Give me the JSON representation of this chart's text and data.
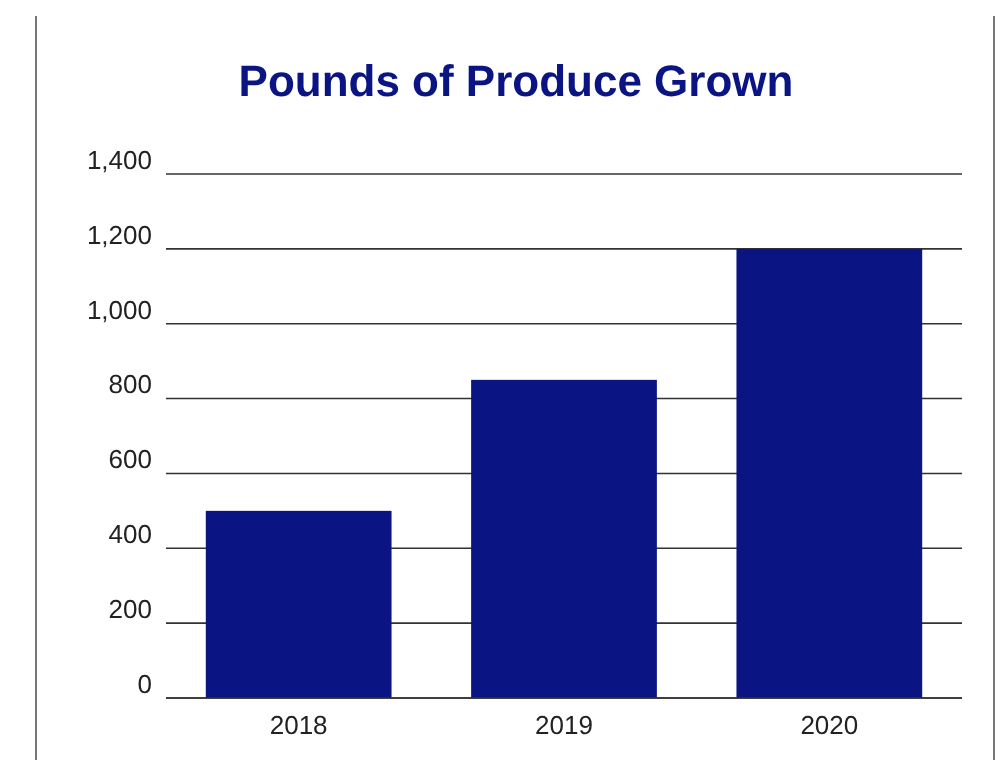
{
  "chart_data": {
    "type": "bar",
    "title": "Pounds of Produce Grown",
    "categories": [
      "2018",
      "2019",
      "2020"
    ],
    "values": [
      500,
      850,
      1200
    ],
    "color": "#0a1482",
    "ylim": [
      0,
      1400
    ],
    "yticks": [
      0,
      {
        "value": 200,
        "label": "200"
      },
      {
        "value": 400,
        "label": "400"
      },
      {
        "value": 600,
        "label": "600"
      },
      {
        "value": 800,
        "label": "800"
      },
      {
        "value": 1000,
        "label": "1,000"
      },
      {
        "value": 1200,
        "label": "1,200"
      },
      {
        "value": 1400,
        "label": "1,400"
      }
    ],
    "grid": "y"
  }
}
